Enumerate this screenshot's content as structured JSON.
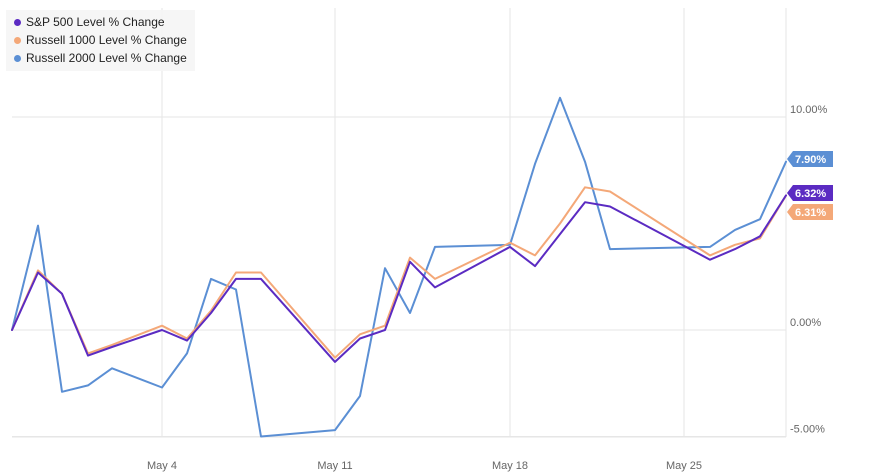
{
  "chart_data": {
    "type": "line",
    "title": "",
    "xlabel": "",
    "ylabel": "",
    "x": [
      "Apr 27",
      "Apr 28",
      "Apr 29",
      "Apr 30",
      "May 1",
      "May 4",
      "May 5",
      "May 6",
      "May 7",
      "May 8",
      "May 11",
      "May 12",
      "May 13",
      "May 14",
      "May 15",
      "May 18",
      "May 19",
      "May 20",
      "May 21",
      "May 22",
      "May 26",
      "May 27",
      "May 28",
      "May 29"
    ],
    "x_ticks": [
      "May 4",
      "May 11",
      "May 18",
      "May 25"
    ],
    "y_ticks": [
      {
        "value": 10,
        "label": "10.00%"
      },
      {
        "value": 0,
        "label": "0.00%"
      },
      {
        "value": -5,
        "label": "-5.00%"
      }
    ],
    "ylim": [
      -5.3,
      15
    ],
    "grid": true,
    "legend_position": "top-left",
    "series": [
      {
        "name": "S&P 500 Level % Change",
        "color": "#5b2bc2",
        "values": [
          0,
          2.7,
          1.7,
          -1.2,
          -0.8,
          0.0,
          -0.5,
          0.8,
          2.4,
          2.4,
          -1.5,
          -0.4,
          0.0,
          3.2,
          2.0,
          3.9,
          3.0,
          4.5,
          6.0,
          5.8,
          3.3,
          3.8,
          4.4,
          6.32
        ],
        "end_label": "6.32%"
      },
      {
        "name": "Russell 1000 Level % Change",
        "color": "#f4a878",
        "values": [
          0,
          2.8,
          1.7,
          -1.1,
          -0.7,
          0.2,
          -0.4,
          0.9,
          2.7,
          2.7,
          -1.3,
          -0.2,
          0.2,
          3.4,
          2.4,
          4.1,
          3.5,
          5.0,
          6.7,
          6.5,
          3.5,
          4.0,
          4.3,
          6.31
        ],
        "end_label": "6.31%"
      },
      {
        "name": "Russell 2000 Level % Change",
        "color": "#5b8fd4",
        "values": [
          0,
          4.9,
          -2.9,
          -2.6,
          -1.8,
          -2.7,
          -1.1,
          2.4,
          1.9,
          -5.0,
          -4.7,
          -3.1,
          2.9,
          0.8,
          3.9,
          4.0,
          7.8,
          10.9,
          7.9,
          3.8,
          3.9,
          4.7,
          5.2,
          7.9
        ],
        "end_label": "7.90%"
      }
    ]
  }
}
